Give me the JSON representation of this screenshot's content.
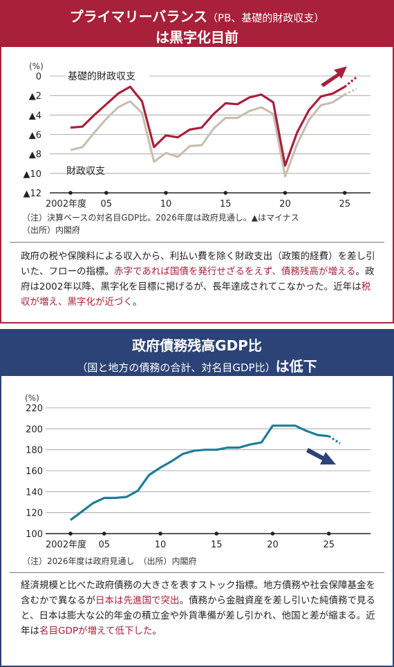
{
  "panel1": {
    "title_main": "プライマリーバランス",
    "title_paren": "（PB、基礎的財政収支）",
    "title_line2": "は黒字化目前",
    "note1": "（注）決算ベースの対名目GDP比。2026年度は政府見通し。▲はマイナス",
    "note2": "（出所）内閣府",
    "body_parts": [
      {
        "text": "政府の税や保険料による収入から、利払い費を除く財政支出（政策的経費）を差し引いた、フローの指標。",
        "hl": false
      },
      {
        "text": "赤字であれば国債を発行せざるをえず、債務残高が増える",
        "hl": true
      },
      {
        "text": "。政府は2002年以降、黒字化を目標に掲げるが、長年達成されてこなかった。近年は",
        "hl": false
      },
      {
        "text": "税収が増え、黒字化が近づく",
        "hl": true
      },
      {
        "text": "。",
        "hl": false
      }
    ]
  },
  "panel2": {
    "title_line1": "政府債務残高GDP比",
    "title_paren": "（国と地方の債務の合計、対名目GDP比）",
    "title_bold2": "は低下",
    "note1": "（注）2026年度は政府見通し　（出所）内閣府",
    "body_parts": [
      {
        "text": "経済規模と比べた政府債務の大きさを表すストック指標。地方債務や社会保障基金を含むかで異なるが",
        "hl": false
      },
      {
        "text": "日本は先進国で突出",
        "hl": true
      },
      {
        "text": "。債務から金融資産を差し引いた純債務で見ると、日本は膨大な公的年金の積立金や外貨準備が差し引かれ、他国と差が縮まる。近年は",
        "hl": false
      },
      {
        "text": "名目GDPが増えて低下した",
        "hl": true
      },
      {
        "text": "。",
        "hl": false
      }
    ]
  },
  "chart_data": [
    {
      "type": "line",
      "unit_label": "(%)",
      "ylim": [
        -12,
        0
      ],
      "y_ticks": [
        0,
        -2,
        -4,
        -6,
        -8,
        -10,
        -12
      ],
      "y_tick_labels": [
        "0",
        "▲2",
        "▲4",
        "▲6",
        "▲8",
        "▲10",
        "▲12"
      ],
      "x_ticks": [
        2002,
        2005,
        2010,
        2015,
        2020,
        2025
      ],
      "x_tick_labels": [
        "2002年度",
        "05",
        "10",
        "15",
        "20",
        "25"
      ],
      "dashed_from": 2025,
      "colors": {
        "primary_balance": "#a8203a",
        "fiscal_balance": "#c9bfb0",
        "trend_arrow": "#a8203a"
      },
      "series": [
        {
          "name": "基礎的財政収支",
          "x": [
            2002,
            2003,
            2004,
            2005,
            2006,
            2007,
            2008,
            2009,
            2010,
            2011,
            2012,
            2013,
            2014,
            2015,
            2016,
            2017,
            2018,
            2019,
            2020,
            2021,
            2022,
            2023,
            2024,
            2025,
            2026
          ],
          "values": [
            -5.3,
            -5.2,
            -4.0,
            -2.9,
            -1.8,
            -1.1,
            -2.6,
            -7.3,
            -6.1,
            -6.3,
            -5.5,
            -5.3,
            -3.9,
            -2.8,
            -2.9,
            -2.2,
            -1.9,
            -2.7,
            -9.2,
            -5.8,
            -3.5,
            -2.1,
            -1.8,
            -1.1,
            -0.1
          ]
        },
        {
          "name": "財政収支",
          "x": [
            2002,
            2003,
            2004,
            2005,
            2006,
            2007,
            2008,
            2009,
            2010,
            2011,
            2012,
            2013,
            2014,
            2015,
            2016,
            2017,
            2018,
            2019,
            2020,
            2021,
            2022,
            2023,
            2024,
            2025,
            2026
          ],
          "values": [
            -7.6,
            -7.3,
            -5.8,
            -4.4,
            -3.2,
            -2.6,
            -3.8,
            -8.8,
            -7.9,
            -8.3,
            -7.2,
            -7.1,
            -5.4,
            -4.3,
            -4.3,
            -3.6,
            -3.2,
            -3.9,
            -10.3,
            -7.0,
            -4.5,
            -3.0,
            -2.7,
            -1.9,
            -1.3
          ]
        }
      ]
    },
    {
      "type": "line",
      "unit_label": "(%)",
      "ylim": [
        100,
        220
      ],
      "y_ticks": [
        100,
        120,
        140,
        160,
        180,
        200,
        220
      ],
      "y_tick_labels": [
        "100",
        "120",
        "140",
        "160",
        "180",
        "200",
        "220"
      ],
      "x_ticks": [
        2002,
        2005,
        2010,
        2015,
        2020,
        2025
      ],
      "x_tick_labels": [
        "2002年度",
        "05",
        "10",
        "15",
        "20",
        "25"
      ],
      "dashed_from": 2025,
      "colors": {
        "debt_ratio": "#1d7d9a",
        "trend_arrow": "#2c4377"
      },
      "series": [
        {
          "name": "",
          "x": [
            2002,
            2003,
            2004,
            2005,
            2006,
            2007,
            2008,
            2009,
            2010,
            2011,
            2012,
            2013,
            2014,
            2015,
            2016,
            2017,
            2018,
            2019,
            2020,
            2021,
            2022,
            2023,
            2024,
            2025,
            2026
          ],
          "values": [
            113,
            121,
            129,
            134,
            134,
            135,
            141,
            156,
            163,
            169,
            176,
            179,
            180,
            180,
            182,
            182,
            185,
            187,
            203,
            203,
            203,
            198,
            194,
            193,
            186
          ]
        }
      ]
    }
  ]
}
